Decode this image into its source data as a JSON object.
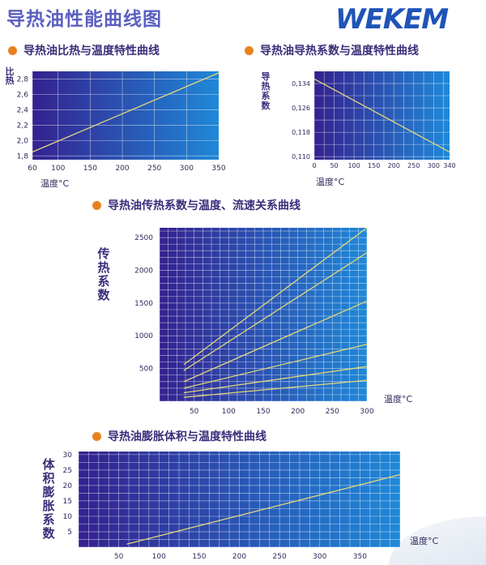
{
  "header": {
    "title": "导热油性能曲线图",
    "logo": "WEKEM"
  },
  "colors": {
    "plot_start": "#34218f",
    "plot_end": "#1f88d8",
    "line": "#e3d77a",
    "bullet": "#e8821e"
  },
  "chart_data": [
    {
      "type": "line",
      "title": "导热油比热与温度特性曲线",
      "ylabel": [
        "比",
        "热"
      ],
      "xlabel": "温度°C",
      "x_ticks": [
        60,
        100,
        150,
        200,
        250,
        300,
        350
      ],
      "y_ticks": [
        "1,8",
        "2,0",
        "2,2",
        "2,4",
        "2,6",
        "2,8"
      ],
      "y_tick_values": [
        1.8,
        2.0,
        2.2,
        2.4,
        2.6,
        2.8
      ],
      "xlim": [
        60,
        350
      ],
      "ylim": [
        1.75,
        2.9
      ],
      "series": [
        {
          "x": [
            60,
            350
          ],
          "values": [
            1.85,
            2.88
          ]
        }
      ]
    },
    {
      "type": "line",
      "title": "导热油导热系数与温度特性曲线",
      "ylabel": [
        "导",
        "热",
        "系",
        "数"
      ],
      "xlabel": "温度°C",
      "x_ticks": [
        0,
        50,
        100,
        150,
        200,
        250,
        300,
        340
      ],
      "y_ticks": [
        "0,110",
        "0,118",
        "0,126",
        "0,134"
      ],
      "y_tick_values": [
        0.11,
        0.118,
        0.126,
        0.134
      ],
      "xlim": [
        0,
        340
      ],
      "ylim": [
        0.109,
        0.138
      ],
      "series": [
        {
          "x": [
            0,
            340
          ],
          "values": [
            0.1355,
            0.1115
          ]
        }
      ]
    },
    {
      "type": "line",
      "title": "导热油传热系数与温度、流速关系曲线",
      "ylabel": [
        "传",
        "热",
        "系",
        "数"
      ],
      "xlabel": "温度°C",
      "x_ticks": [
        50,
        100,
        150,
        200,
        250,
        300
      ],
      "y_ticks": [
        "500",
        "1000",
        "1500",
        "2000",
        "2500"
      ],
      "y_tick_values": [
        500,
        1000,
        1500,
        2000,
        2500
      ],
      "xlim": [
        0,
        300
      ],
      "ylim": [
        0,
        2650
      ],
      "series": [
        {
          "x": [
            35,
            300
          ],
          "values": [
            560,
            2650
          ]
        },
        {
          "x": [
            35,
            300
          ],
          "values": [
            470,
            2270
          ]
        },
        {
          "x": [
            35,
            300
          ],
          "values": [
            300,
            1530
          ]
        },
        {
          "x": [
            35,
            300
          ],
          "values": [
            200,
            870
          ]
        },
        {
          "x": [
            35,
            300
          ],
          "values": [
            130,
            530
          ]
        },
        {
          "x": [
            35,
            300
          ],
          "values": [
            60,
            320
          ]
        }
      ]
    },
    {
      "type": "line",
      "title": "导热油膨胀体积与温度特性曲线",
      "ylabel": [
        "体",
        "积",
        "膨",
        "胀",
        "系",
        "数"
      ],
      "xlabel": "温度°C",
      "x_ticks": [
        50,
        100,
        150,
        200,
        250,
        300,
        350
      ],
      "y_ticks": [
        "5",
        "10",
        "15",
        "20",
        "25",
        "30"
      ],
      "y_tick_values": [
        5,
        10,
        15,
        20,
        25,
        30
      ],
      "xlim": [
        0,
        400
      ],
      "ylim": [
        0,
        31
      ],
      "series": [
        {
          "x": [
            60,
            400
          ],
          "values": [
            1,
            23.5
          ]
        }
      ]
    }
  ]
}
